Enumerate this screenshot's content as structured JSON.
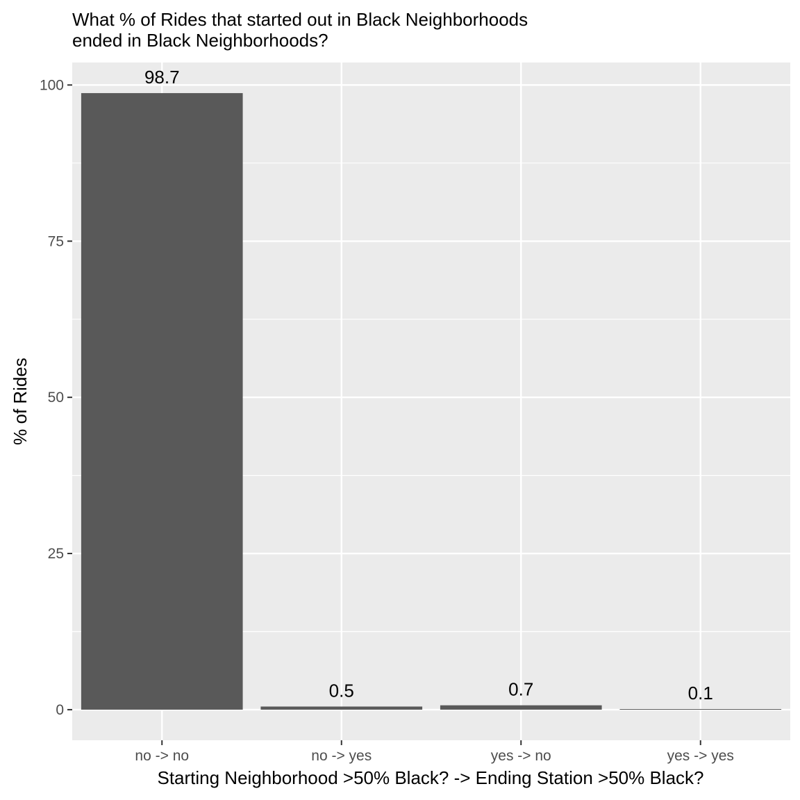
{
  "chart_data": {
    "type": "bar",
    "title_line1": "What % of Rides that started out in Black Neighborhoods",
    "title_line2": "ended in Black Neighborhoods?",
    "xlabel": "Starting Neighborhood >50% Black? -> Ending Station >50% Black?",
    "ylabel": "% of Rides",
    "categories": [
      "no -> no",
      "no -> yes",
      "yes -> no",
      "yes -> yes"
    ],
    "values": [
      98.7,
      0.5,
      0.7,
      0.1
    ],
    "data_labels": [
      "98.7",
      "0.5",
      "0.7",
      "0.1"
    ],
    "ylim": [
      -4.9,
      103.6
    ],
    "yticks": [
      0,
      25,
      50,
      75,
      100
    ],
    "ytick_labels": [
      "0",
      "25",
      "50",
      "75",
      "100"
    ],
    "grid": true,
    "legend": "none",
    "colors": {
      "bar": "#595959",
      "panel_background": "#ebebeb",
      "grid": "#ffffff",
      "tick_text": "#4d4d4d"
    }
  }
}
